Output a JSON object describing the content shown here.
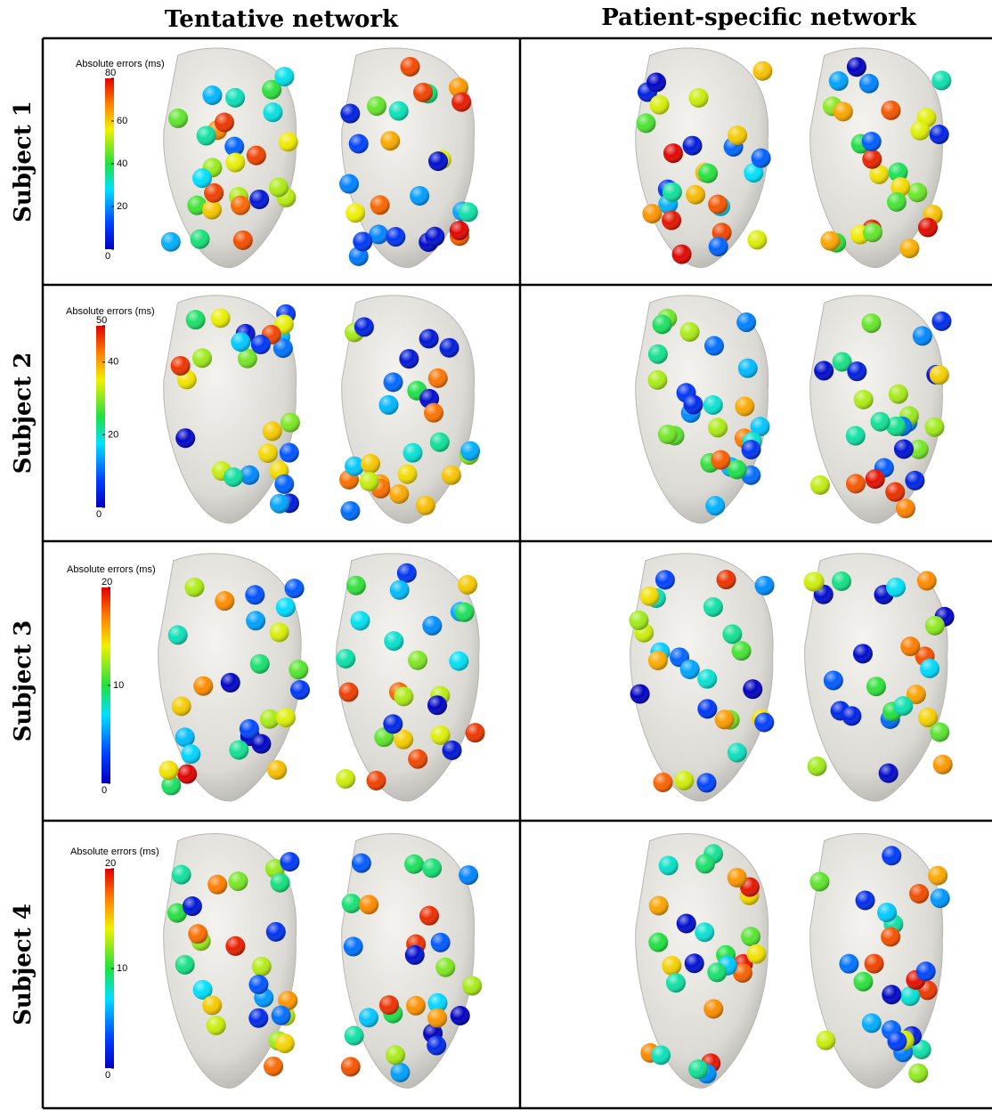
{
  "header": {
    "columns": [
      "Tentative network",
      "Patient-specific network"
    ]
  },
  "rows": [
    {
      "label": "Subject 1",
      "colorbar": {
        "title": "Absolute errors (ms)",
        "range": [
          0,
          80
        ],
        "ticks": [
          0,
          20,
          40,
          60,
          80
        ]
      }
    },
    {
      "label": "Subject 2",
      "colorbar": {
        "title": "Absolute errors (ms)",
        "range": [
          0,
          50
        ],
        "ticks": [
          0,
          20,
          40,
          50
        ]
      }
    },
    {
      "label": "Subject 3",
      "colorbar": {
        "title": "Absolute errors (ms)",
        "range": [
          0,
          20
        ],
        "ticks": [
          0,
          10,
          20
        ]
      }
    },
    {
      "label": "Subject 4",
      "colorbar": {
        "title": "Absolute errors (ms)",
        "range": [
          0,
          20
        ],
        "ticks": [
          0,
          10,
          20
        ]
      }
    }
  ]
}
